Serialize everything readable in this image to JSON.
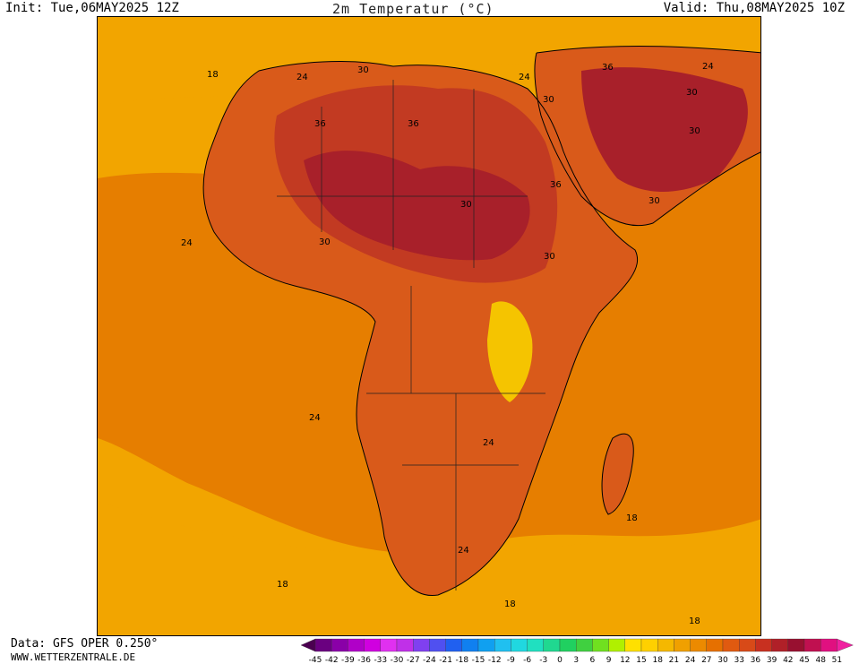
{
  "header": {
    "init": "Init: Tue,06MAY2025 12Z",
    "title": "2m Temperatur (°C)",
    "valid": "Valid: Thu,08MAY2025 10Z"
  },
  "footer": {
    "data_source": "Data: GFS OPER 0.250°",
    "website": "WWW.WETTERZENTRALE.DE"
  },
  "map": {
    "region": "Africa and Middle East",
    "colors": {
      "ocean_18": "#F2A500",
      "ocean_24": "#E67E00",
      "land_30": "#D95A1A",
      "land_36": "#C23A22",
      "land_39": "#A8202A",
      "land_42": "#8F1030",
      "cool_15": "#F5C400"
    },
    "contour_labels": [
      "18",
      "24",
      "30",
      "36",
      "36",
      "30",
      "24",
      "30",
      "36",
      "30",
      "24",
      "30",
      "36",
      "30",
      "30",
      "30",
      "24",
      "24",
      "24",
      "24",
      "18",
      "18",
      "18",
      "18"
    ]
  },
  "colorbar": {
    "labels": [
      "-45",
      "-42",
      "-39",
      "-36",
      "-33",
      "-30",
      "-27",
      "-24",
      "-21",
      "-18",
      "-15",
      "-12",
      "-9",
      "-6",
      "-3",
      "0",
      "3",
      "6",
      "9",
      "12",
      "15",
      "18",
      "21",
      "24",
      "27",
      "30",
      "33",
      "36",
      "39",
      "42",
      "45",
      "48",
      "51"
    ],
    "colors": [
      "#4B0050",
      "#6A0080",
      "#8A00A8",
      "#B000C8",
      "#D000E0",
      "#E030F0",
      "#C030E8",
      "#8040F0",
      "#5050F0",
      "#2060F0",
      "#1080F0",
      "#10A0F0",
      "#20C0F0",
      "#20D8E0",
      "#20E0C0",
      "#20D890",
      "#20D060",
      "#40D040",
      "#70E020",
      "#B0F000",
      "#FFE000",
      "#FFD000",
      "#F5B800",
      "#F0A000",
      "#EC8A00",
      "#E67000",
      "#E05A10",
      "#D84A18",
      "#C83020",
      "#B02028",
      "#981030",
      "#C01050",
      "#E01080",
      "#F020A0"
    ]
  }
}
